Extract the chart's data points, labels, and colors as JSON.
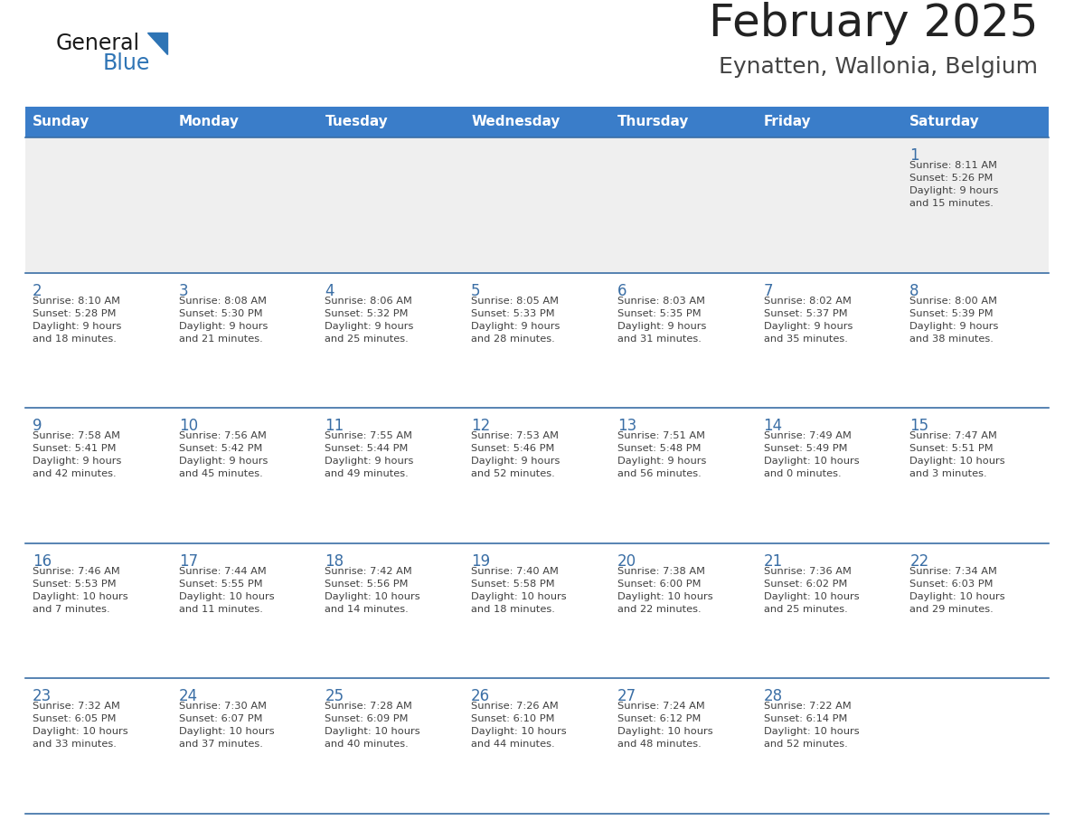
{
  "title": "February 2025",
  "subtitle": "Eynatten, Wallonia, Belgium",
  "days_of_week": [
    "Sunday",
    "Monday",
    "Tuesday",
    "Wednesday",
    "Thursday",
    "Friday",
    "Saturday"
  ],
  "header_bg": "#3A7DC9",
  "header_text": "#FFFFFF",
  "row1_bg": "#EFEFEF",
  "row_bg": "#FFFFFF",
  "separator_color": "#3A6EA5",
  "day_num_color": "#3A6EA5",
  "cell_text_color": "#404040",
  "title_color": "#222222",
  "subtitle_color": "#444444",
  "logo_general_color": "#1a1a1a",
  "logo_blue_color": "#2E74B5",
  "weeks": [
    [
      {
        "day": null,
        "info": null
      },
      {
        "day": null,
        "info": null
      },
      {
        "day": null,
        "info": null
      },
      {
        "day": null,
        "info": null
      },
      {
        "day": null,
        "info": null
      },
      {
        "day": null,
        "info": null
      },
      {
        "day": 1,
        "info": "Sunrise: 8:11 AM\nSunset: 5:26 PM\nDaylight: 9 hours\nand 15 minutes."
      }
    ],
    [
      {
        "day": 2,
        "info": "Sunrise: 8:10 AM\nSunset: 5:28 PM\nDaylight: 9 hours\nand 18 minutes."
      },
      {
        "day": 3,
        "info": "Sunrise: 8:08 AM\nSunset: 5:30 PM\nDaylight: 9 hours\nand 21 minutes."
      },
      {
        "day": 4,
        "info": "Sunrise: 8:06 AM\nSunset: 5:32 PM\nDaylight: 9 hours\nand 25 minutes."
      },
      {
        "day": 5,
        "info": "Sunrise: 8:05 AM\nSunset: 5:33 PM\nDaylight: 9 hours\nand 28 minutes."
      },
      {
        "day": 6,
        "info": "Sunrise: 8:03 AM\nSunset: 5:35 PM\nDaylight: 9 hours\nand 31 minutes."
      },
      {
        "day": 7,
        "info": "Sunrise: 8:02 AM\nSunset: 5:37 PM\nDaylight: 9 hours\nand 35 minutes."
      },
      {
        "day": 8,
        "info": "Sunrise: 8:00 AM\nSunset: 5:39 PM\nDaylight: 9 hours\nand 38 minutes."
      }
    ],
    [
      {
        "day": 9,
        "info": "Sunrise: 7:58 AM\nSunset: 5:41 PM\nDaylight: 9 hours\nand 42 minutes."
      },
      {
        "day": 10,
        "info": "Sunrise: 7:56 AM\nSunset: 5:42 PM\nDaylight: 9 hours\nand 45 minutes."
      },
      {
        "day": 11,
        "info": "Sunrise: 7:55 AM\nSunset: 5:44 PM\nDaylight: 9 hours\nand 49 minutes."
      },
      {
        "day": 12,
        "info": "Sunrise: 7:53 AM\nSunset: 5:46 PM\nDaylight: 9 hours\nand 52 minutes."
      },
      {
        "day": 13,
        "info": "Sunrise: 7:51 AM\nSunset: 5:48 PM\nDaylight: 9 hours\nand 56 minutes."
      },
      {
        "day": 14,
        "info": "Sunrise: 7:49 AM\nSunset: 5:49 PM\nDaylight: 10 hours\nand 0 minutes."
      },
      {
        "day": 15,
        "info": "Sunrise: 7:47 AM\nSunset: 5:51 PM\nDaylight: 10 hours\nand 3 minutes."
      }
    ],
    [
      {
        "day": 16,
        "info": "Sunrise: 7:46 AM\nSunset: 5:53 PM\nDaylight: 10 hours\nand 7 minutes."
      },
      {
        "day": 17,
        "info": "Sunrise: 7:44 AM\nSunset: 5:55 PM\nDaylight: 10 hours\nand 11 minutes."
      },
      {
        "day": 18,
        "info": "Sunrise: 7:42 AM\nSunset: 5:56 PM\nDaylight: 10 hours\nand 14 minutes."
      },
      {
        "day": 19,
        "info": "Sunrise: 7:40 AM\nSunset: 5:58 PM\nDaylight: 10 hours\nand 18 minutes."
      },
      {
        "day": 20,
        "info": "Sunrise: 7:38 AM\nSunset: 6:00 PM\nDaylight: 10 hours\nand 22 minutes."
      },
      {
        "day": 21,
        "info": "Sunrise: 7:36 AM\nSunset: 6:02 PM\nDaylight: 10 hours\nand 25 minutes."
      },
      {
        "day": 22,
        "info": "Sunrise: 7:34 AM\nSunset: 6:03 PM\nDaylight: 10 hours\nand 29 minutes."
      }
    ],
    [
      {
        "day": 23,
        "info": "Sunrise: 7:32 AM\nSunset: 6:05 PM\nDaylight: 10 hours\nand 33 minutes."
      },
      {
        "day": 24,
        "info": "Sunrise: 7:30 AM\nSunset: 6:07 PM\nDaylight: 10 hours\nand 37 minutes."
      },
      {
        "day": 25,
        "info": "Sunrise: 7:28 AM\nSunset: 6:09 PM\nDaylight: 10 hours\nand 40 minutes."
      },
      {
        "day": 26,
        "info": "Sunrise: 7:26 AM\nSunset: 6:10 PM\nDaylight: 10 hours\nand 44 minutes."
      },
      {
        "day": 27,
        "info": "Sunrise: 7:24 AM\nSunset: 6:12 PM\nDaylight: 10 hours\nand 48 minutes."
      },
      {
        "day": 28,
        "info": "Sunrise: 7:22 AM\nSunset: 6:14 PM\nDaylight: 10 hours\nand 52 minutes."
      },
      {
        "day": null,
        "info": null
      }
    ]
  ]
}
